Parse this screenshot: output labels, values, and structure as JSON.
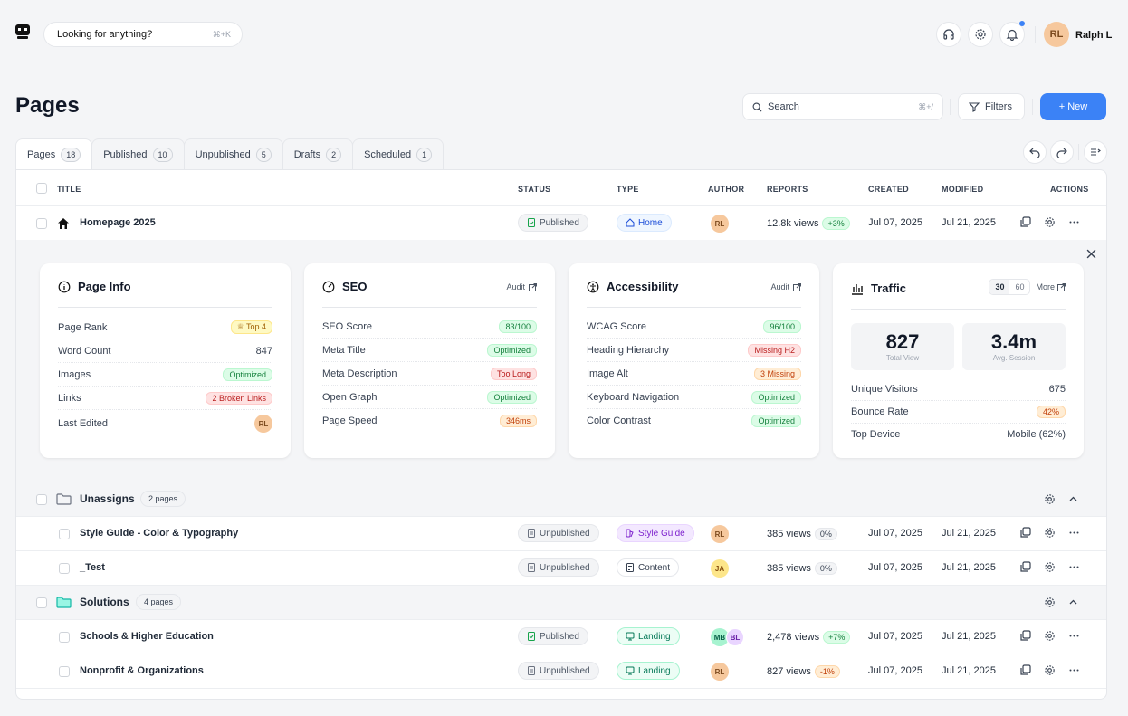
{
  "topbar": {
    "search_placeholder": "Looking for anything?",
    "search_shortcut": "⌘+K",
    "user_initials": "RL",
    "user_name": "Ralph L"
  },
  "header": {
    "title": "Pages",
    "search_placeholder": "Search",
    "search_shortcut": "⌘+/",
    "filters_label": "Filters",
    "new_label": "+ New"
  },
  "tabs": [
    {
      "label": "Pages",
      "count": "18"
    },
    {
      "label": "Published",
      "count": "10"
    },
    {
      "label": "Unpublished",
      "count": "5"
    },
    {
      "label": "Drafts",
      "count": "2"
    },
    {
      "label": "Scheduled",
      "count": "1"
    }
  ],
  "columns": {
    "title": "TITLE",
    "status": "STATUS",
    "type": "TYPE",
    "author": "AUTHOR",
    "reports": "REPORTS",
    "created": "CREATED",
    "modified": "MODIFIED",
    "actions": "ACTIONS"
  },
  "homepage": {
    "title": "Homepage 2025",
    "status": "Published",
    "type": "Home",
    "author": "RL",
    "views": "12.8k views",
    "trend": "+3%",
    "created": "Jul 07, 2025",
    "modified": "Jul 21, 2025"
  },
  "page_info": {
    "title": "Page Info",
    "rows": [
      {
        "label": "Page Rank",
        "value": "Top 4"
      },
      {
        "label": "Word Count",
        "value": "847"
      },
      {
        "label": "Images",
        "value": "Optimized"
      },
      {
        "label": "Links",
        "value": "2 Broken Links"
      },
      {
        "label": "Last Edited",
        "value": "RL"
      }
    ]
  },
  "seo": {
    "title": "SEO",
    "link": "Audit",
    "rows": [
      {
        "label": "SEO Score",
        "value": "83/100"
      },
      {
        "label": "Meta Title",
        "value": "Optimized"
      },
      {
        "label": "Meta Description",
        "value": "Too Long"
      },
      {
        "label": "Open Graph",
        "value": "Optimized"
      },
      {
        "label": "Page Speed",
        "value": "346ms"
      }
    ]
  },
  "accessibility": {
    "title": "Accessibility",
    "link": "Audit",
    "rows": [
      {
        "label": "WCAG Score",
        "value": "96/100"
      },
      {
        "label": "Heading Hierarchy",
        "value": "Missing H2"
      },
      {
        "label": "Image Alt",
        "value": "3 Missing"
      },
      {
        "label": "Keyboard Navigation",
        "value": "Optimized"
      },
      {
        "label": "Color Contrast",
        "value": "Optimized"
      }
    ]
  },
  "traffic": {
    "title": "Traffic",
    "range_30": "30",
    "range_60": "60",
    "more": "More",
    "total_view": "827",
    "total_view_label": "Total View",
    "avg_session": "3.4m",
    "avg_session_label": "Avg. Session",
    "rows": [
      {
        "label": "Unique Visitors",
        "value": "675"
      },
      {
        "label": "Bounce Rate",
        "value": "42%"
      },
      {
        "label": "Top Device",
        "value": "Mobile (62%)"
      }
    ]
  },
  "groups": [
    {
      "name": "Unassigns",
      "count": "2 pages"
    },
    {
      "name": "Solutions",
      "count": "4 pages"
    }
  ],
  "rows": [
    {
      "title": "Style Guide - Color & Typography",
      "status": "Unpublished",
      "type": "Style Guide",
      "author": "RL",
      "views": "385 views",
      "trend": "0%",
      "created": "Jul 07, 2025",
      "modified": "Jul 21, 2025"
    },
    {
      "title": "_Test",
      "status": "Unpublished",
      "type": "Content",
      "author": "JA",
      "views": "385 views",
      "trend": "0%",
      "created": "Jul 07, 2025",
      "modified": "Jul 21, 2025"
    },
    {
      "title": "Schools & Higher Education",
      "status": "Published",
      "type": "Landing",
      "author": "MB",
      "author2": "BL",
      "views": "2,478 views",
      "trend": "+7%",
      "created": "Jul 07, 2025",
      "modified": "Jul 21, 2025"
    },
    {
      "title": "Nonprofit & Organizations",
      "status": "Unpublished",
      "type": "Landing",
      "author": "RL",
      "views": "827 views",
      "trend": "-1%",
      "created": "Jul 07, 2025",
      "modified": "Jul 21, 2025"
    }
  ]
}
